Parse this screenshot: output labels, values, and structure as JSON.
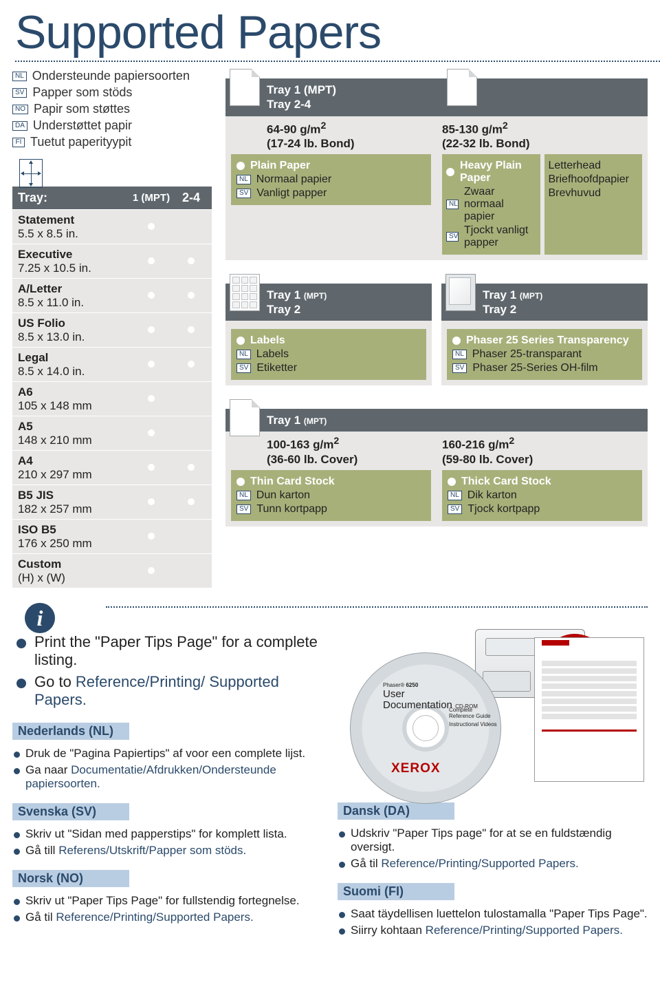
{
  "title": "Supported Papers",
  "translations": [
    {
      "tag": "NL",
      "text": "Ondersteunde papiersoorten"
    },
    {
      "tag": "SV",
      "text": "Papper som stöds"
    },
    {
      "tag": "NO",
      "text": "Papir som støttes"
    },
    {
      "tag": "DA",
      "text": "Understøttet papir"
    },
    {
      "tag": "FI",
      "text": "Tuetut paperityypit"
    }
  ],
  "sizesTable": {
    "head": {
      "label": "Tray:",
      "col2": "1 (MPT)",
      "col3": "2-4"
    },
    "rows": [
      {
        "name": "Statement",
        "dim": "5.5 x 8.5 in.",
        "c2": true,
        "c3": false
      },
      {
        "name": "Executive",
        "dim": "7.25 x 10.5 in.",
        "c2": true,
        "c3": true
      },
      {
        "name": "A/Letter",
        "dim": "8.5 x 11.0 in.",
        "c2": true,
        "c3": true
      },
      {
        "name": "US Folio",
        "dim": "8.5 x 13.0 in.",
        "c2": true,
        "c3": true
      },
      {
        "name": "Legal",
        "dim": "8.5 x 14.0 in.",
        "c2": true,
        "c3": true
      },
      {
        "name": "A6",
        "dim": "105 x 148 mm",
        "c2": true,
        "c3": false
      },
      {
        "name": "A5",
        "dim": "148 x 210 mm",
        "c2": true,
        "c3": false
      },
      {
        "name": "A4",
        "dim": "210 x 297 mm",
        "c2": true,
        "c3": true
      },
      {
        "name": "B5 JIS",
        "dim": "182 x 257 mm",
        "c2": true,
        "c3": true
      },
      {
        "name": "ISO B5",
        "dim": "176 x 250 mm",
        "c2": true,
        "c3": false
      },
      {
        "name": "Custom",
        "dim": "(H) x (W)",
        "c2": true,
        "c3": false
      }
    ]
  },
  "paperCards": [
    {
      "icon": "fold",
      "tabs": [
        "Tray 1 (MPT)",
        "Tray 2-4"
      ],
      "cells": [
        {
          "weight": "64-90 g/m²\n(17-24 lb. Bond)",
          "type": {
            "head": "Plain Paper",
            "subs": [
              {
                "tag": "NL",
                "t": "Normaal papier"
              },
              {
                "tag": "SV",
                "t": "Vanligt papper"
              }
            ]
          }
        },
        {
          "weight": "85-130 g/m²\n(22-32 lb. Bond)",
          "twin": [
            {
              "head": "Heavy Plain Paper",
              "subs": [
                {
                  "tag": "NL",
                  "t": "Zwaar normaal papier"
                },
                {
                  "tag": "SV",
                  "t": "Tjockt vanligt papper"
                }
              ]
            },
            {
              "head": "Letterhead",
              "subs": [
                {
                  "tag": "",
                  "t": "Briefhoofdpapier"
                },
                {
                  "tag": "",
                  "t": "Brevhuvud"
                }
              ]
            }
          ]
        }
      ]
    }
  ],
  "labelsCard": {
    "tabs": [
      "Tray 1 (MPT)",
      "Tray 2"
    ],
    "type": {
      "head": "Labels",
      "subs": [
        {
          "tag": "NL",
          "t": "Labels"
        },
        {
          "tag": "SV",
          "t": "Etiketter"
        }
      ]
    }
  },
  "transCard": {
    "tabs": [
      "Tray 1 (MPT)",
      "Tray 2"
    ],
    "type": {
      "head": "Phaser 25 Series Transparency",
      "subs": [
        {
          "tag": "NL",
          "t": "Phaser 25-transparant"
        },
        {
          "tag": "SV",
          "t": "Phaser 25-Series OH-film"
        }
      ]
    }
  },
  "cardstockCard": {
    "tabs": [
      "Tray 1 (MPT)"
    ],
    "cells": [
      {
        "weight": "100-163 g/m²\n(36-60 lb. Cover)",
        "type": {
          "head": "Thin Card Stock",
          "subs": [
            {
              "tag": "NL",
              "t": "Dun karton"
            },
            {
              "tag": "SV",
              "t": "Tunn kortpapp"
            }
          ]
        }
      },
      {
        "weight": "160-216 g/m²\n(59-80 lb. Cover)",
        "type": {
          "head": "Thick Card Stock",
          "subs": [
            {
              "tag": "NL",
              "t": "Dik karton"
            },
            {
              "tag": "SV",
              "t": "Tjock kortpapp"
            }
          ]
        }
      }
    ]
  },
  "enBullets": [
    {
      "pre": "Print the \"Paper Tips Page\" for a complete listing.",
      "link": ""
    },
    {
      "pre": "Go to ",
      "link": "Reference/Printing/ Supported Papers."
    }
  ],
  "langBlocks": {
    "left": [
      {
        "head": "Nederlands (NL)",
        "items": [
          {
            "pre": "Druk de \"Pagina Papiertips\" af voor een complete lijst.",
            "link": ""
          },
          {
            "pre": "Ga naar ",
            "link": "Documentatie/Afdrukken/Ondersteunde papiersoorten."
          }
        ]
      },
      {
        "head": "Svenska (SV)",
        "items": [
          {
            "pre": "Skriv ut \"Sidan med papperstips\" for komplett lista.",
            "link": ""
          },
          {
            "pre": "Gå till ",
            "link": "Referens/Utskrift/Papper som stöds."
          }
        ]
      },
      {
        "head": "Norsk (NO)",
        "items": [
          {
            "pre": "Skriv ut \"Paper Tips Page\" for fullstendig fortegnelse.",
            "link": ""
          },
          {
            "pre": "Gå til ",
            "link": "Reference/Printing/Supported Papers."
          }
        ]
      }
    ],
    "right": [
      {
        "head": "Dansk (DA)",
        "items": [
          {
            "pre": "Udskriv \"Paper Tips page\" for at se en fuldstændig oversigt.",
            "link": ""
          },
          {
            "pre": "Gå til ",
            "link": "Reference/Printing/Supported Papers."
          }
        ]
      },
      {
        "head": "Suomi (FI)",
        "items": [
          {
            "pre": "Saat täydellisen luettelon tulostamalla \"Paper Tips Page\".",
            "link": ""
          },
          {
            "pre": "Siirry kohtaan ",
            "link": "Reference/Printing/Supported Papers."
          }
        ]
      }
    ]
  },
  "cd": {
    "model": "6250",
    "line1": "User",
    "line2": "Documentation",
    "sub": "CD-ROM",
    "r1": "Complete",
    "r2": "Reference Guide",
    "r3": "Instructional Videos",
    "brand": "XEROX"
  },
  "colors": {
    "navy": "#2b4a6b",
    "grey": "#5f676d",
    "olive": "#a8b07a",
    "panel": "#e8e7e5",
    "langHead": "#b9cde2",
    "red": "#b40000"
  }
}
